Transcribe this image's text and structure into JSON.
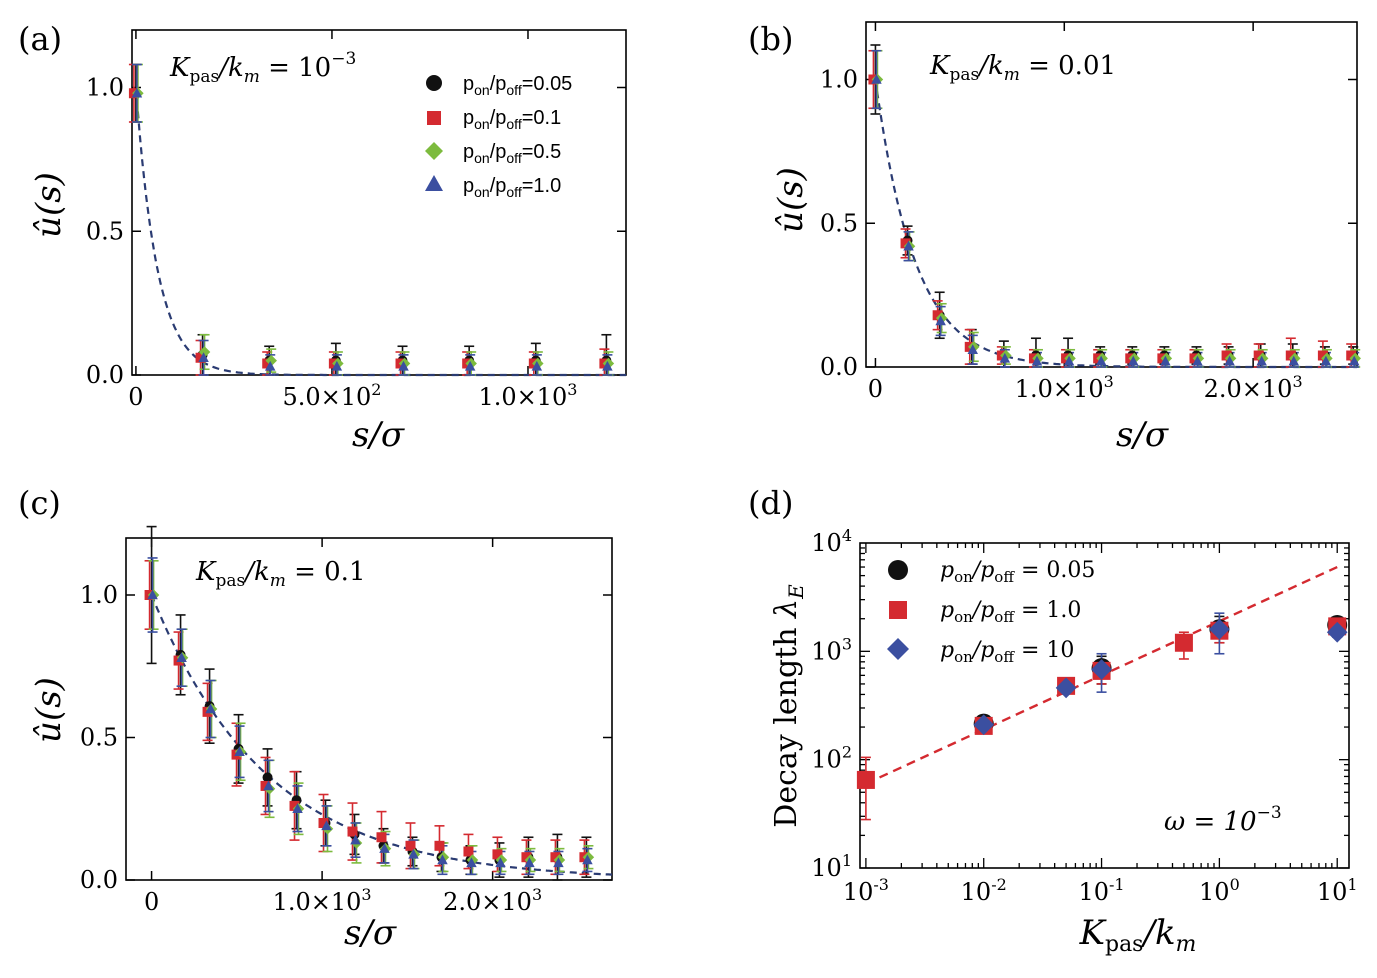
{
  "figure": {
    "colors": {
      "black": "#111111",
      "red": "#d42a30",
      "green": "#7dbb3e",
      "blue": "#3b4fa0",
      "fit_a": "#2a3b72",
      "fit_d": "#d42a30"
    },
    "marker_names": [
      "circle",
      "square",
      "diamond",
      "triangle"
    ]
  },
  "chart_data": [
    {
      "id": "a",
      "type": "scatter",
      "panel_label": "(a)",
      "annotation": "K_pas/k_m = 10^-3",
      "annotation_parts": {
        "main": "K",
        "sub": "pas",
        "rest": "/k",
        "sub2": "m",
        "eq": " = 10",
        "sup": "−3"
      },
      "xlabel": "s/σ",
      "ylabel": "û(s)",
      "xlim": [
        -10,
        1250
      ],
      "ylim": [
        0,
        1.2
      ],
      "xticks": [
        {
          "v": 0,
          "label": "0"
        },
        {
          "v": 500,
          "label": "5.0×10²",
          "mant": "5.0×10",
          "exp": "2"
        },
        {
          "v": 1000,
          "label": "1.0×10³",
          "mant": "1.0×10",
          "exp": "3"
        }
      ],
      "yticks": [
        {
          "v": 0,
          "label": "0.0"
        },
        {
          "v": 0.5,
          "label": "0.5"
        },
        {
          "v": 1.0,
          "label": "1.0"
        }
      ],
      "legend_position": "top-right",
      "legend": [
        "pon/poff=0.05",
        "pon/poff=0.1",
        "pon/poff=0.5",
        "pon/poff=1.0"
      ],
      "legend_parts": [
        {
          "a": "p",
          "s1": "on",
          "b": "/p",
          "s2": "off",
          "c": "=0.05"
        },
        {
          "a": "p",
          "s1": "on",
          "b": "/p",
          "s2": "off",
          "c": "=0.1"
        },
        {
          "a": "p",
          "s1": "on",
          "b": "/p",
          "s2": "off",
          "c": "=0.5"
        },
        {
          "a": "p",
          "s1": "on",
          "b": "/p",
          "s2": "off",
          "c": "=1.0"
        }
      ],
      "fit": {
        "type": "exponential",
        "decay_length": 55,
        "style": "dashed"
      },
      "series": [
        {
          "name": "pon/poff=0.05",
          "marker": "circle",
          "color": "black",
          "x": [
            0,
            170,
            340,
            510,
            680,
            850,
            1020,
            1200
          ],
          "y": [
            0.98,
            0.07,
            0.05,
            0.05,
            0.05,
            0.05,
            0.05,
            0.05
          ],
          "err": [
            0.1,
            0.07,
            0.05,
            0.06,
            0.05,
            0.05,
            0.06,
            0.09
          ]
        },
        {
          "name": "pon/poff=0.1",
          "marker": "square",
          "color": "red",
          "x": [
            0,
            170,
            340,
            510,
            680,
            850,
            1020,
            1200
          ],
          "y": [
            0.98,
            0.06,
            0.04,
            0.04,
            0.04,
            0.04,
            0.04,
            0.04
          ],
          "err": [
            0.1,
            0.06,
            0.04,
            0.04,
            0.04,
            0.04,
            0.04,
            0.05
          ]
        },
        {
          "name": "pon/poff=0.5",
          "marker": "diamond",
          "color": "green",
          "x": [
            0,
            170,
            340,
            510,
            680,
            850,
            1020,
            1200
          ],
          "y": [
            0.98,
            0.08,
            0.05,
            0.04,
            0.04,
            0.04,
            0.04,
            0.04
          ],
          "err": [
            0.1,
            0.06,
            0.04,
            0.04,
            0.04,
            0.04,
            0.04,
            0.04
          ]
        },
        {
          "name": "pon/poff=1.0",
          "marker": "triangle",
          "color": "blue",
          "x": [
            0,
            170,
            340,
            510,
            680,
            850,
            1020,
            1200
          ],
          "y": [
            0.98,
            0.06,
            0.03,
            0.03,
            0.03,
            0.03,
            0.03,
            0.03
          ],
          "err": [
            0.1,
            0.06,
            0.04,
            0.04,
            0.04,
            0.04,
            0.04,
            0.04
          ]
        }
      ]
    },
    {
      "id": "b",
      "type": "scatter",
      "panel_label": "(b)",
      "annotation": "K_pas/k_m = 0.01",
      "annotation_parts": {
        "main": "K",
        "sub": "pas",
        "rest": "/k",
        "sub2": "m",
        "eq": " = 0.01",
        "sup": ""
      },
      "xlabel": "s/σ",
      "ylabel": "û(s)",
      "xlim": [
        -50,
        2550
      ],
      "ylim": [
        0,
        1.2
      ],
      "xticks": [
        {
          "v": 0,
          "label": "0"
        },
        {
          "v": 1000,
          "label": "1.0×10³",
          "mant": "1.0×10",
          "exp": "3"
        },
        {
          "v": 2000,
          "label": "2.0×10³",
          "mant": "2.0×10",
          "exp": "3"
        }
      ],
      "yticks": [
        {
          "v": 0,
          "label": "0.0"
        },
        {
          "v": 0.5,
          "label": "0.5"
        },
        {
          "v": 1.0,
          "label": "1.0"
        }
      ],
      "fit": {
        "type": "exponential",
        "decay_length": 210,
        "style": "dashed"
      },
      "series": [
        {
          "name": "pon/poff=0.05",
          "marker": "circle",
          "color": "black",
          "x": [
            0,
            170,
            340,
            510,
            680,
            850,
            1020,
            1190,
            1360,
            1530,
            1700,
            1870,
            2040,
            2210,
            2380,
            2530
          ],
          "y": [
            1.0,
            0.44,
            0.18,
            0.07,
            0.04,
            0.04,
            0.04,
            0.04,
            0.04,
            0.04,
            0.04,
            0.04,
            0.04,
            0.04,
            0.04,
            0.04
          ],
          "err": [
            0.12,
            0.05,
            0.08,
            0.06,
            0.05,
            0.06,
            0.06,
            0.03,
            0.03,
            0.03,
            0.03,
            0.03,
            0.04,
            0.04,
            0.03,
            0.03
          ]
        },
        {
          "name": "pon/poff=0.1",
          "marker": "square",
          "color": "red",
          "x": [
            0,
            170,
            340,
            510,
            680,
            850,
            1020,
            1190,
            1360,
            1530,
            1700,
            1870,
            2040,
            2210,
            2380,
            2530
          ],
          "y": [
            1.0,
            0.43,
            0.18,
            0.07,
            0.04,
            0.03,
            0.03,
            0.03,
            0.03,
            0.03,
            0.03,
            0.04,
            0.04,
            0.04,
            0.04,
            0.04
          ],
          "err": [
            0.1,
            0.05,
            0.05,
            0.06,
            0.03,
            0.03,
            0.03,
            0.03,
            0.03,
            0.03,
            0.03,
            0.04,
            0.04,
            0.06,
            0.05,
            0.04
          ]
        },
        {
          "name": "pon/poff=0.5",
          "marker": "diamond",
          "color": "green",
          "x": [
            0,
            170,
            340,
            510,
            680,
            850,
            1020,
            1190,
            1360,
            1530,
            1700,
            1870,
            2040,
            2210,
            2380,
            2530
          ],
          "y": [
            1.0,
            0.42,
            0.17,
            0.07,
            0.04,
            0.03,
            0.03,
            0.03,
            0.03,
            0.03,
            0.03,
            0.03,
            0.03,
            0.03,
            0.03,
            0.03
          ],
          "err": [
            0.1,
            0.05,
            0.05,
            0.05,
            0.03,
            0.03,
            0.03,
            0.03,
            0.03,
            0.03,
            0.03,
            0.03,
            0.03,
            0.03,
            0.03,
            0.03
          ]
        },
        {
          "name": "pon/poff=1.0",
          "marker": "triangle",
          "color": "blue",
          "x": [
            0,
            170,
            340,
            510,
            680,
            850,
            1020,
            1190,
            1360,
            1530,
            1700,
            1870,
            2040,
            2210,
            2380,
            2530
          ],
          "y": [
            1.0,
            0.42,
            0.16,
            0.06,
            0.03,
            0.02,
            0.02,
            0.02,
            0.02,
            0.02,
            0.02,
            0.02,
            0.02,
            0.02,
            0.02,
            0.02
          ],
          "err": [
            0.1,
            0.05,
            0.05,
            0.05,
            0.03,
            0.03,
            0.03,
            0.03,
            0.03,
            0.03,
            0.03,
            0.03,
            0.03,
            0.03,
            0.03,
            0.03
          ]
        }
      ]
    },
    {
      "id": "c",
      "type": "scatter",
      "panel_label": "(c)",
      "annotation": "K_pas/k_m = 0.1",
      "annotation_parts": {
        "main": "K",
        "sub": "pas",
        "rest": "/k",
        "sub2": "m",
        "eq": " = 0.1",
        "sup": ""
      },
      "xlabel": "s/σ",
      "ylabel": "û(s)",
      "xlim": [
        -150,
        2700
      ],
      "ylim": [
        0,
        1.2
      ],
      "xticks": [
        {
          "v": 0,
          "label": "0"
        },
        {
          "v": 1000,
          "label": "1.0×10³",
          "mant": "1.0×10",
          "exp": "3"
        },
        {
          "v": 2000,
          "label": "2.0×10³",
          "mant": "2.0×10",
          "exp": "3"
        }
      ],
      "yticks": [
        {
          "v": 0,
          "label": "0.0"
        },
        {
          "v": 0.5,
          "label": "0.5"
        },
        {
          "v": 1.0,
          "label": "1.0"
        }
      ],
      "fit": {
        "type": "exponential",
        "decay_length": 680,
        "style": "dashed"
      },
      "series": [
        {
          "name": "pon/poff=0.05",
          "marker": "circle",
          "color": "black",
          "x": [
            0,
            170,
            340,
            510,
            680,
            850,
            1020,
            1190,
            1360,
            1530,
            1700,
            1870,
            2040,
            2210,
            2380,
            2550
          ],
          "y": [
            1.0,
            0.79,
            0.61,
            0.46,
            0.36,
            0.28,
            0.2,
            0.16,
            0.12,
            0.1,
            0.08,
            0.07,
            0.07,
            0.08,
            0.08,
            0.08
          ],
          "err": [
            0.24,
            0.14,
            0.13,
            0.12,
            0.1,
            0.1,
            0.08,
            0.07,
            0.06,
            0.05,
            0.05,
            0.05,
            0.06,
            0.07,
            0.08,
            0.07
          ]
        },
        {
          "name": "pon/poff=0.1",
          "marker": "square",
          "color": "red",
          "x": [
            0,
            170,
            340,
            510,
            680,
            850,
            1020,
            1190,
            1360,
            1530,
            1700,
            1870,
            2040,
            2210,
            2380,
            2550
          ],
          "y": [
            1.0,
            0.77,
            0.59,
            0.44,
            0.33,
            0.26,
            0.2,
            0.17,
            0.15,
            0.12,
            0.12,
            0.1,
            0.09,
            0.08,
            0.08,
            0.08
          ],
          "err": [
            0.12,
            0.1,
            0.1,
            0.11,
            0.1,
            0.12,
            0.1,
            0.1,
            0.09,
            0.08,
            0.07,
            0.06,
            0.06,
            0.06,
            0.06,
            0.06
          ]
        },
        {
          "name": "pon/poff=0.5",
          "marker": "diamond",
          "color": "green",
          "x": [
            0,
            170,
            340,
            510,
            680,
            850,
            1020,
            1190,
            1360,
            1530,
            1700,
            1870,
            2040,
            2210,
            2380,
            2550
          ],
          "y": [
            1.0,
            0.78,
            0.6,
            0.45,
            0.32,
            0.25,
            0.18,
            0.13,
            0.11,
            0.09,
            0.08,
            0.07,
            0.07,
            0.07,
            0.07,
            0.08
          ],
          "err": [
            0.12,
            0.1,
            0.1,
            0.1,
            0.1,
            0.09,
            0.08,
            0.07,
            0.06,
            0.05,
            0.05,
            0.05,
            0.04,
            0.04,
            0.04,
            0.04
          ]
        },
        {
          "name": "pon/poff=1.0",
          "marker": "triangle",
          "color": "blue",
          "x": [
            0,
            170,
            340,
            510,
            680,
            850,
            1020,
            1190,
            1360,
            1530,
            1700,
            1870,
            2040,
            2210,
            2380,
            2550
          ],
          "y": [
            1.0,
            0.78,
            0.6,
            0.45,
            0.33,
            0.25,
            0.19,
            0.14,
            0.11,
            0.09,
            0.07,
            0.06,
            0.06,
            0.06,
            0.06,
            0.07
          ],
          "err": [
            0.13,
            0.1,
            0.1,
            0.09,
            0.09,
            0.08,
            0.07,
            0.06,
            0.05,
            0.05,
            0.05,
            0.04,
            0.04,
            0.04,
            0.04,
            0.04
          ]
        }
      ]
    },
    {
      "id": "d",
      "type": "scatter",
      "scale": "log-log",
      "panel_label": "(d)",
      "annotation": "ω = 10^-3",
      "annotation_parts": {
        "main": "ω = 10",
        "sup": "−3"
      },
      "xlabel": "K_pas/k_m",
      "ylabel": "Decay length λ_E",
      "ylabel_parts": {
        "text": "Decay length  ",
        "sym": "λ",
        "sub": "E"
      },
      "xlabel_parts": {
        "main": "K",
        "sub": "pas",
        "rest": "/k",
        "sub2": "m"
      },
      "xlim_log10": [
        -3.05,
        1.1
      ],
      "ylim_log10": [
        1,
        4
      ],
      "xticks": [
        {
          "v": -3,
          "mant": "10",
          "exp": "-3"
        },
        {
          "v": -2,
          "mant": "10",
          "exp": "-2"
        },
        {
          "v": -1,
          "mant": "10",
          "exp": "-1"
        },
        {
          "v": 0,
          "mant": "10",
          "exp": "0"
        },
        {
          "v": 1,
          "mant": "10",
          "exp": "1"
        }
      ],
      "yticks": [
        {
          "v": 1,
          "mant": "10",
          "exp": "1"
        },
        {
          "v": 2,
          "mant": "10",
          "exp": "2"
        },
        {
          "v": 3,
          "mant": "10",
          "exp": "3"
        },
        {
          "v": 4,
          "mant": "10",
          "exp": "4"
        }
      ],
      "legend_position": "top-left",
      "legend": [
        "pon/poff = 0.05",
        "pon/poff = 1.0",
        "pon/poff = 10"
      ],
      "legend_parts": [
        {
          "a": "p",
          "s1": "on",
          "b": "/p",
          "s2": "off",
          "c": " = 0.05"
        },
        {
          "a": "p",
          "s1": "on",
          "b": "/p",
          "s2": "off",
          "c": " = 1.0"
        },
        {
          "a": "p",
          "s1": "on",
          "b": "/p",
          "s2": "off",
          "c": " = 10"
        }
      ],
      "fit": {
        "type": "power-law",
        "x": [
          0.001,
          10
        ],
        "y": [
          60,
          6000
        ],
        "style": "dashed"
      },
      "series": [
        {
          "name": "pon/poff = 0.05",
          "marker": "circle",
          "color": "black",
          "x": [
            0.01,
            0.1,
            1,
            10
          ],
          "y": [
            215,
            700,
            1600,
            1750
          ],
          "err_lo": [
            190,
            500,
            1200,
            1600
          ],
          "err_hi": [
            240,
            900,
            2100,
            1900
          ]
        },
        {
          "name": "pon/poff = 1.0",
          "marker": "square",
          "color": "red",
          "x": [
            0.001,
            0.01,
            0.05,
            0.1,
            0.5,
            1,
            10
          ],
          "y": [
            65,
            205,
            480,
            660,
            1200,
            1550,
            1700
          ],
          "err_lo": [
            28,
            185,
            430,
            500,
            850,
            1200,
            1550
          ],
          "err_hi": [
            105,
            225,
            530,
            820,
            1500,
            1900,
            1850
          ]
        },
        {
          "name": "pon/poff = 10",
          "marker": "diamond",
          "color": "blue",
          "x": [
            0.01,
            0.05,
            0.1,
            1,
            10
          ],
          "y": [
            210,
            460,
            680,
            1600,
            1500
          ],
          "err_lo": [
            195,
            430,
            420,
            950,
            1350
          ],
          "err_hi": [
            225,
            490,
            950,
            2250,
            1650
          ]
        }
      ]
    }
  ]
}
